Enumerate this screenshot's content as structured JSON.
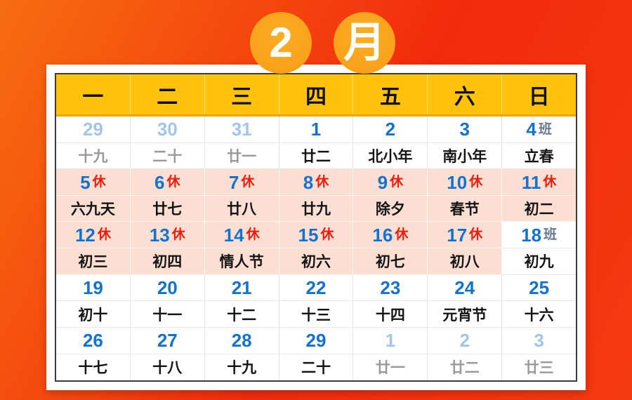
{
  "badge": {
    "month_number": "2",
    "month_char": "月"
  },
  "legend": {
    "rest_marker": "休",
    "work_marker": "班"
  },
  "colors": {
    "background-orange": "#f76d10",
    "background-red": "#f22b0d",
    "header-yellow": "#ffc30d",
    "header-border-orange": "#f9a300",
    "badge-orange": "#f9a11c",
    "rest-pink": "#fbdfd3",
    "date-blue": "#1472cf",
    "faded-blue": "#a3c5e9",
    "faded-gray": "#9a9a9a",
    "rest-red": "#ee1c0c",
    "work-slate": "#64788f",
    "text-black": "#141414"
  },
  "calendar": {
    "weekdays": [
      "一",
      "二",
      "三",
      "四",
      "五",
      "六",
      "日"
    ],
    "weeks": [
      [
        {
          "num": "29",
          "lunar": "十九",
          "style": "other"
        },
        {
          "num": "30",
          "lunar": "二十",
          "style": "other"
        },
        {
          "num": "31",
          "lunar": "廿一",
          "style": "other"
        },
        {
          "num": "1",
          "lunar": "廿二",
          "style": "normal"
        },
        {
          "num": "2",
          "lunar": "北小年",
          "style": "normal"
        },
        {
          "num": "3",
          "lunar": "南小年",
          "style": "normal"
        },
        {
          "num": "4",
          "lunar": "立春",
          "style": "normal",
          "marker": "班"
        }
      ],
      [
        {
          "num": "5",
          "lunar": "六九天",
          "style": "rest",
          "marker": "休"
        },
        {
          "num": "6",
          "lunar": "廿七",
          "style": "rest",
          "marker": "休"
        },
        {
          "num": "7",
          "lunar": "廿八",
          "style": "rest",
          "marker": "休"
        },
        {
          "num": "8",
          "lunar": "廿九",
          "style": "rest",
          "marker": "休"
        },
        {
          "num": "9",
          "lunar": "除夕",
          "style": "rest",
          "marker": "休"
        },
        {
          "num": "10",
          "lunar": "春节",
          "style": "rest",
          "marker": "休"
        },
        {
          "num": "11",
          "lunar": "初二",
          "style": "rest",
          "marker": "休"
        }
      ],
      [
        {
          "num": "12",
          "lunar": "初三",
          "style": "rest",
          "marker": "休"
        },
        {
          "num": "13",
          "lunar": "初四",
          "style": "rest",
          "marker": "休"
        },
        {
          "num": "14",
          "lunar": "情人节",
          "style": "rest",
          "marker": "休"
        },
        {
          "num": "15",
          "lunar": "初六",
          "style": "rest",
          "marker": "休"
        },
        {
          "num": "16",
          "lunar": "初七",
          "style": "rest",
          "marker": "休"
        },
        {
          "num": "17",
          "lunar": "初八",
          "style": "rest",
          "marker": "休"
        },
        {
          "num": "18",
          "lunar": "初九",
          "style": "normal",
          "marker": "班"
        }
      ],
      [
        {
          "num": "19",
          "lunar": "初十",
          "style": "normal"
        },
        {
          "num": "20",
          "lunar": "十一",
          "style": "normal"
        },
        {
          "num": "21",
          "lunar": "十二",
          "style": "normal"
        },
        {
          "num": "22",
          "lunar": "十三",
          "style": "normal"
        },
        {
          "num": "23",
          "lunar": "十四",
          "style": "normal"
        },
        {
          "num": "24",
          "lunar": "元宵节",
          "style": "normal"
        },
        {
          "num": "25",
          "lunar": "十六",
          "style": "normal"
        }
      ],
      [
        {
          "num": "26",
          "lunar": "十七",
          "style": "normal"
        },
        {
          "num": "27",
          "lunar": "十八",
          "style": "normal"
        },
        {
          "num": "28",
          "lunar": "十九",
          "style": "normal"
        },
        {
          "num": "29",
          "lunar": "二十",
          "style": "normal"
        },
        {
          "num": "1",
          "lunar": "廿一",
          "style": "other"
        },
        {
          "num": "2",
          "lunar": "廿二",
          "style": "other"
        },
        {
          "num": "3",
          "lunar": "廿三",
          "style": "other"
        }
      ]
    ]
  }
}
